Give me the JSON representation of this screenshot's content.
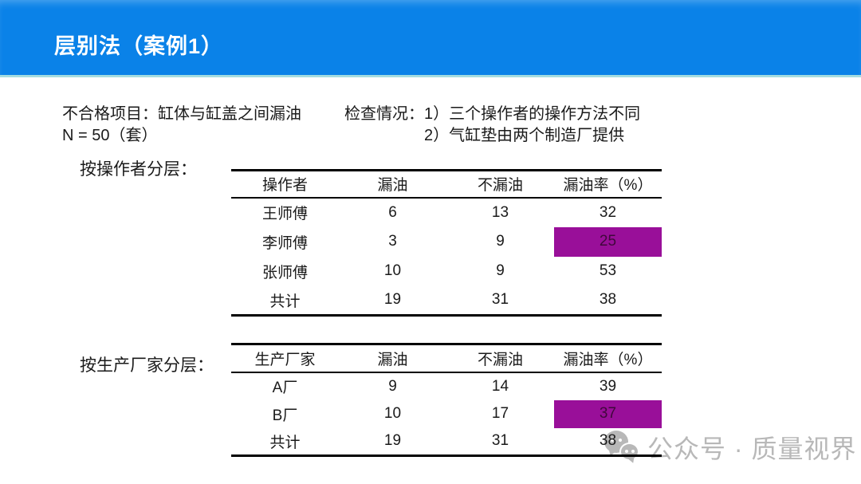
{
  "slide": {
    "title": "层别法（案例1）"
  },
  "info": {
    "defect_item": "不合格项目：缸体与缸盖之间漏油",
    "sample_size": "N = 50（套）",
    "inspection_label": "检查情况：",
    "inspection_points": [
      "1）三个操作者的操作方法不同",
      "2）气缸垫由两个制造厂提供"
    ]
  },
  "tables": [
    {
      "section_label": "按操作者分层：",
      "headers": [
        "操作者",
        "漏油",
        "不漏油",
        "漏油率（%）"
      ],
      "rows": [
        {
          "cells": [
            "王师傅",
            "6",
            "13",
            "32"
          ],
          "highlight_col": null
        },
        {
          "cells": [
            "李师傅",
            "3",
            "9",
            "25"
          ],
          "highlight_col": 3
        },
        {
          "cells": [
            "张师傅",
            "10",
            "9",
            "53"
          ],
          "highlight_col": null
        },
        {
          "cells": [
            "共计",
            "19",
            "31",
            "38"
          ],
          "highlight_col": null
        }
      ]
    },
    {
      "section_label": "按生产厂家分层：",
      "headers": [
        "生产厂家",
        "漏油",
        "不漏油",
        "漏油率（%）"
      ],
      "rows": [
        {
          "cells": [
            "A厂",
            "9",
            "14",
            "39"
          ],
          "highlight_col": null
        },
        {
          "cells": [
            "B厂",
            "10",
            "17",
            "37"
          ],
          "highlight_col": 3
        },
        {
          "cells": [
            "共计",
            "19",
            "31",
            "38"
          ],
          "highlight_col": null
        }
      ]
    }
  ],
  "watermark": {
    "icon": "wechat-icon",
    "text": "公众号 · 质量视界"
  },
  "colors": {
    "header_blue": "#0a82e8",
    "header_edge": "#a5dde0",
    "highlight_purple": "#990f99",
    "highlight_text": "#40083c",
    "watermark_gray": "#b8b8b8",
    "text_black": "#1a1a1a"
  }
}
